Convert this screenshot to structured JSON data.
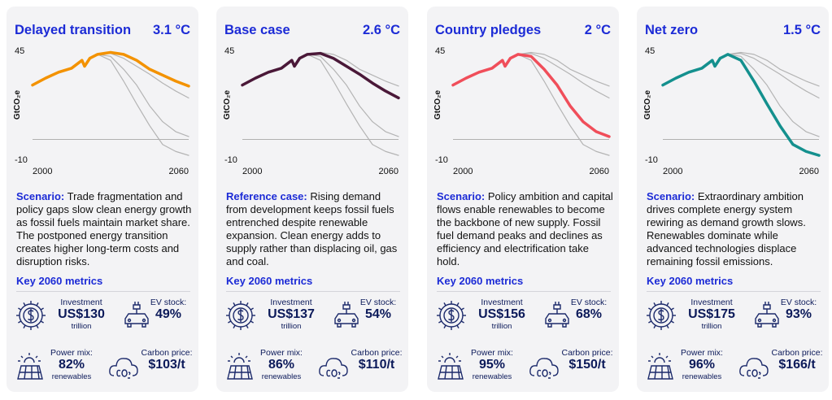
{
  "cards": [
    {
      "title": "Delayed transition",
      "temperature": "3.1 °C",
      "scenario_label": "Scenario:",
      "scenario_text": "Trade fragmentation and policy gaps slow clean energy growth as fossil fuels maintain market share. The postponed energy transition creates higher long-term costs and disruption risks.",
      "metrics_heading": "Key 2060 metrics",
      "investment": {
        "label": "Investment",
        "value": "US$130",
        "unit": "trillion"
      },
      "ev": {
        "label": "EV stock:",
        "value": "49%"
      },
      "power": {
        "label": "Power mix:",
        "value": "82%",
        "unit": "renewables"
      },
      "carbon": {
        "label": "Carbon price:",
        "value": "$103/t"
      }
    },
    {
      "title": "Base case",
      "temperature": "2.6 °C",
      "scenario_label": "Reference case:",
      "scenario_text": "Rising demand from development keeps fossil fuels entrenched despite renewable expansion. Clean energy adds to supply rather than displacing oil, gas and coal.",
      "metrics_heading": "Key 2060 metrics",
      "investment": {
        "label": "Investment",
        "value": "US$137",
        "unit": "trillion"
      },
      "ev": {
        "label": "EV stock:",
        "value": "54%"
      },
      "power": {
        "label": "Power mix:",
        "value": "86%",
        "unit": "renewables"
      },
      "carbon": {
        "label": "Carbon price:",
        "value": "$110/t"
      }
    },
    {
      "title": "Country pledges",
      "temperature": "2 °C",
      "scenario_label": "Scenario:",
      "scenario_text": "Policy ambition and capital flows enable renewables to become the backbone of new supply. Fossil fuel demand peaks and declines as efficiency and electrification take hold.",
      "metrics_heading": "Key 2060 metrics",
      "investment": {
        "label": "Investment",
        "value": "US$156",
        "unit": "trillion"
      },
      "ev": {
        "label": "EV stock:",
        "value": "68%"
      },
      "power": {
        "label": "Power mix:",
        "value": "95%",
        "unit": "renewables"
      },
      "carbon": {
        "label": "Carbon price:",
        "value": "$150/t"
      }
    },
    {
      "title": "Net zero",
      "temperature": "1.5 °C",
      "scenario_label": "Scenario:",
      "scenario_text": "Extraordinary ambition drives complete energy system rewiring as demand growth slows. Renewables dominate while advanced technologies displace remaining fossil emissions.",
      "metrics_heading": "Key 2060 metrics",
      "investment": {
        "label": "Investment",
        "value": "US$175",
        "unit": "trillion"
      },
      "ev": {
        "label": "EV stock:",
        "value": "93%"
      },
      "power": {
        "label": "Power mix:",
        "value": "96%",
        "unit": "renewables"
      },
      "carbon": {
        "label": "Carbon price:",
        "value": "$166/t"
      }
    }
  ],
  "chart_data": [
    {
      "type": "line",
      "y_label": "GtCO₂e",
      "x": [
        2000,
        2005,
        2010,
        2015,
        2019,
        2020,
        2022,
        2025,
        2030,
        2035,
        2040,
        2045,
        2050,
        2055,
        2060
      ],
      "xlim": [
        2000,
        2060
      ],
      "xticks": [
        2000,
        2060
      ],
      "ylim": [
        -10,
        45
      ],
      "yticks": [
        45,
        -10
      ],
      "series": [
        {
          "color": "#b4b4b4",
          "values": [
            27.5,
            31,
            34,
            36,
            40,
            37,
            41,
            43,
            43.5,
            41,
            37,
            33,
            28.5,
            24.5,
            21
          ]
        },
        {
          "color": "#b4b4b4",
          "values": [
            27.5,
            31,
            34,
            36,
            40,
            37,
            41,
            43,
            42,
            35.5,
            27.5,
            17,
            9,
            4,
            1.5
          ]
        },
        {
          "color": "#b4b4b4",
          "values": [
            27.5,
            31,
            34,
            36,
            40,
            37,
            41,
            43,
            40,
            29.5,
            18,
            7,
            -2.5,
            -6,
            -8
          ]
        },
        {
          "color": "#f39200",
          "values": [
            27.5,
            31,
            34,
            36,
            40,
            37,
            41,
            43,
            44,
            43,
            40,
            35.5,
            32.5,
            29.5,
            27
          ]
        }
      ]
    },
    {
      "type": "line",
      "y_label": "GtCO₂e",
      "x": [
        2000,
        2005,
        2010,
        2015,
        2019,
        2020,
        2022,
        2025,
        2030,
        2035,
        2040,
        2045,
        2050,
        2055,
        2060
      ],
      "xlim": [
        2000,
        2060
      ],
      "xticks": [
        2000,
        2060
      ],
      "ylim": [
        -10,
        45
      ],
      "yticks": [
        45,
        -10
      ],
      "series": [
        {
          "color": "#b4b4b4",
          "values": [
            27.5,
            31,
            34,
            36,
            40,
            37,
            41,
            43,
            44,
            43,
            40,
            35.5,
            32.5,
            29.5,
            27
          ]
        },
        {
          "color": "#b4b4b4",
          "values": [
            27.5,
            31,
            34,
            36,
            40,
            37,
            41,
            43,
            42,
            35.5,
            27.5,
            17,
            9,
            4,
            1.5
          ]
        },
        {
          "color": "#b4b4b4",
          "values": [
            27.5,
            31,
            34,
            36,
            40,
            37,
            41,
            43,
            40,
            29.5,
            18,
            7,
            -2.5,
            -6,
            -8
          ]
        },
        {
          "color": "#4a1838",
          "values": [
            27.5,
            31,
            34,
            36,
            40,
            37,
            41,
            43,
            43.5,
            41,
            37,
            33,
            28.5,
            24.5,
            21
          ]
        }
      ]
    },
    {
      "type": "line",
      "y_label": "GtCO₂e",
      "x": [
        2000,
        2005,
        2010,
        2015,
        2019,
        2020,
        2022,
        2025,
        2030,
        2035,
        2040,
        2045,
        2050,
        2055,
        2060
      ],
      "xlim": [
        2000,
        2060
      ],
      "xticks": [
        2000,
        2060
      ],
      "ylim": [
        -10,
        45
      ],
      "yticks": [
        45,
        -10
      ],
      "series": [
        {
          "color": "#b4b4b4",
          "values": [
            27.5,
            31,
            34,
            36,
            40,
            37,
            41,
            43,
            44,
            43,
            40,
            35.5,
            32.5,
            29.5,
            27
          ]
        },
        {
          "color": "#b4b4b4",
          "values": [
            27.5,
            31,
            34,
            36,
            40,
            37,
            41,
            43,
            43.5,
            41,
            37,
            33,
            28.5,
            24.5,
            21
          ]
        },
        {
          "color": "#b4b4b4",
          "values": [
            27.5,
            31,
            34,
            36,
            40,
            37,
            41,
            43,
            40,
            29.5,
            18,
            7,
            -2.5,
            -6,
            -8
          ]
        },
        {
          "color": "#f04e5a",
          "values": [
            27.5,
            31,
            34,
            36,
            40,
            37,
            41,
            43,
            42,
            35.5,
            27.5,
            17,
            9,
            4,
            1.5
          ]
        }
      ]
    },
    {
      "type": "line",
      "y_label": "GtCO₂e",
      "x": [
        2000,
        2005,
        2010,
        2015,
        2019,
        2020,
        2022,
        2025,
        2030,
        2035,
        2040,
        2045,
        2050,
        2055,
        2060
      ],
      "xlim": [
        2000,
        2060
      ],
      "xticks": [
        2000,
        2060
      ],
      "ylim": [
        -10,
        45
      ],
      "yticks": [
        45,
        -10
      ],
      "series": [
        {
          "color": "#b4b4b4",
          "values": [
            27.5,
            31,
            34,
            36,
            40,
            37,
            41,
            43,
            44,
            43,
            40,
            35.5,
            32.5,
            29.5,
            27
          ]
        },
        {
          "color": "#b4b4b4",
          "values": [
            27.5,
            31,
            34,
            36,
            40,
            37,
            41,
            43,
            43.5,
            41,
            37,
            33,
            28.5,
            24.5,
            21
          ]
        },
        {
          "color": "#b4b4b4",
          "values": [
            27.5,
            31,
            34,
            36,
            40,
            37,
            41,
            43,
            42,
            35.5,
            27.5,
            17,
            9,
            4,
            1.5
          ]
        },
        {
          "color": "#14908e",
          "values": [
            27.5,
            31,
            34,
            36,
            40,
            37,
            41,
            43,
            40,
            29.5,
            18,
            7,
            -2.5,
            -6,
            -8
          ]
        }
      ]
    }
  ]
}
